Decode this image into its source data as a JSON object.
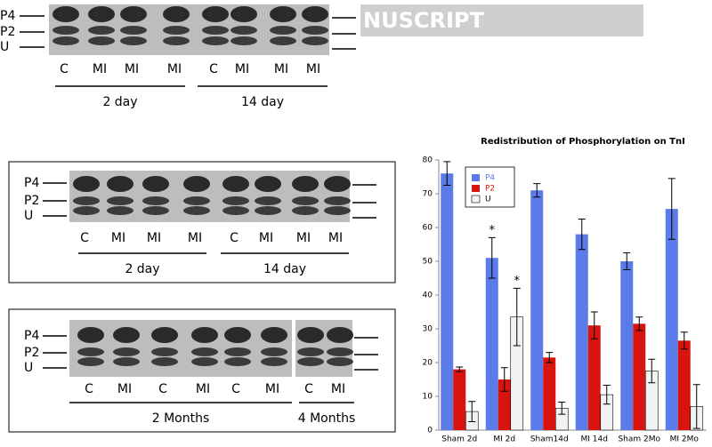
{
  "top_blot": {
    "row_labels": [
      "P4",
      "P2",
      "U"
    ],
    "lanes": [
      "C",
      "MI",
      "MI",
      "MI",
      "C",
      "MI",
      "MI",
      "MI"
    ],
    "groups": [
      "2 day",
      "14 day"
    ],
    "watermark": "NUSCRIPT"
  },
  "middle_blot": {
    "row_labels": [
      "P4",
      "P2",
      "U"
    ],
    "lanes": [
      "C",
      "MI",
      "MI",
      "MI",
      "C",
      "MI",
      "MI",
      "MI"
    ],
    "groups": [
      "2 day",
      "14 day"
    ]
  },
  "bottom_blot": {
    "row_labels": [
      "P4",
      "P2",
      "U"
    ],
    "lanes": [
      "C",
      "MI",
      "C",
      "MI",
      "C",
      "MI",
      "C",
      "MI"
    ],
    "groups": [
      "2 Months",
      "4 Months"
    ]
  },
  "chart_data": {
    "type": "bar",
    "title": "Redistribution of Phosphorylation on TnI",
    "categories": [
      "Sham 2d",
      "MI 2d",
      "Sham14d",
      "MI 14d",
      "Sham 2Mo",
      "MI 2Mo"
    ],
    "series": [
      {
        "name": "P4",
        "color": "#5b7be8",
        "values": [
          76,
          51,
          71,
          58,
          50,
          65.5
        ],
        "errors": [
          3.5,
          6,
          2,
          4.5,
          2.5,
          9
        ]
      },
      {
        "name": "P2",
        "color": "#d9140e",
        "values": [
          18,
          15,
          21.5,
          31,
          31.5,
          26.5
        ],
        "errors": [
          0.7,
          3.5,
          1.5,
          4,
          2,
          2.5
        ]
      },
      {
        "name": "U",
        "color": "#f2f2f2",
        "values": [
          5.5,
          33.5,
          6.5,
          10.5,
          17.5,
          7
        ],
        "errors": [
          3,
          8.5,
          1.8,
          2.8,
          3.5,
          6.5
        ]
      }
    ],
    "annotations": [
      "*",
      "*"
    ],
    "ylim": [
      0,
      80
    ],
    "yticks": [
      0,
      10,
      20,
      30,
      40,
      50,
      60,
      70,
      80
    ],
    "legend": "upper left"
  }
}
